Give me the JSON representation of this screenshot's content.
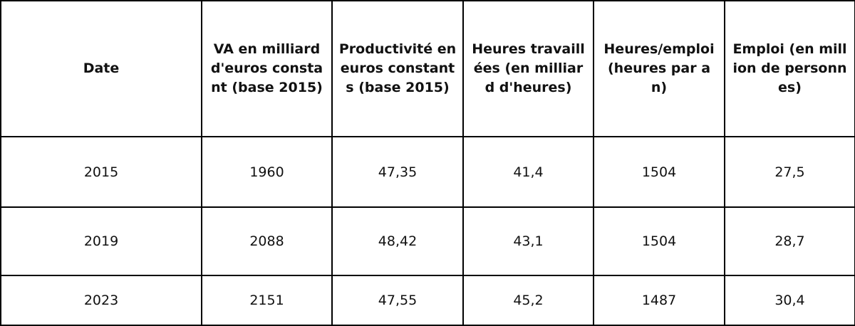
{
  "table": {
    "headers": [
      "Date",
      "VA en milliard d'euros constant (base 2015)",
      "Productivité en euros constants (base 2015)",
      "Heures travaillées (en milliard d'heures)",
      "Heures/emploi (heures par an)",
      "Emploi (en million de personnes)"
    ],
    "rows": [
      [
        "2015",
        "1960",
        "47,35",
        "41,4",
        "1504",
        "27,5"
      ],
      [
        "2019",
        "2088",
        "48,42",
        "43,1",
        "1504",
        "28,7"
      ],
      [
        "2023",
        "2151",
        "47,55",
        "45,2",
        "1487",
        "30,4"
      ]
    ]
  }
}
